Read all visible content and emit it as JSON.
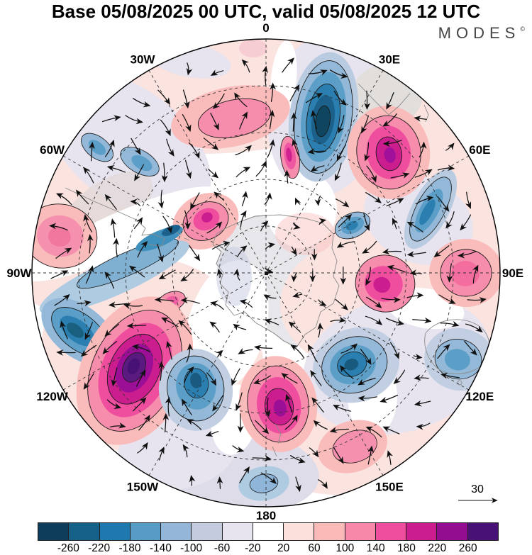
{
  "header": {
    "title": "Base 05/08/2025 00 UTC, valid 05/08/2025 12 UTC",
    "brand": "MODES",
    "brand_mark": "©"
  },
  "map": {
    "longitude_labels": [
      {
        "label": "0",
        "angle_deg": 0
      },
      {
        "label": "30E",
        "angle_deg": 30
      },
      {
        "label": "60E",
        "angle_deg": 60
      },
      {
        "label": "90E",
        "angle_deg": 90
      },
      {
        "label": "120E",
        "angle_deg": 120
      },
      {
        "label": "150E",
        "angle_deg": 150
      },
      {
        "label": "180",
        "angle_deg": 180
      },
      {
        "label": "150W",
        "angle_deg": 210
      },
      {
        "label": "120W",
        "angle_deg": 240
      },
      {
        "label": "90W",
        "angle_deg": 270
      },
      {
        "label": "60W",
        "angle_deg": 300
      },
      {
        "label": "30W",
        "angle_deg": 330
      }
    ]
  },
  "reference_vector": {
    "label": "30"
  },
  "colorbar": {
    "labels": [
      "-260",
      "-220",
      "-180",
      "-140",
      "-100",
      "-60",
      "-20",
      "20",
      "60",
      "100",
      "140",
      "180",
      "220",
      "260"
    ],
    "colors": [
      "#0d3d5a",
      "#15618a",
      "#2079ae",
      "#569cc6",
      "#93b6d9",
      "#c5cbdf",
      "#e7e3ef",
      "#ffffff",
      "#fbe0dc",
      "#f9bab8",
      "#f788a9",
      "#ef4e9f",
      "#cb1d8d",
      "#920d90",
      "#471175"
    ]
  },
  "chart_data": {
    "type": "filled-contour-with-vectors",
    "projection": "south-polar-stereographic",
    "title": "Base 05/08/2025 00 UTC, valid 05/08/2025 12 UTC",
    "base_time": "05/08/2025 00 UTC",
    "valid_time": "05/08/2025 12 UTC",
    "brand": "MODES©",
    "contour_levels": [
      -260,
      -220,
      -180,
      -140,
      -100,
      -60,
      -20,
      20,
      60,
      100,
      140,
      180,
      220,
      260
    ],
    "colorbar_colors": [
      "#0d3d5a",
      "#15618a",
      "#2079ae",
      "#569cc6",
      "#93b6d9",
      "#c5cbdf",
      "#e7e3ef",
      "#ffffff",
      "#fbe0dc",
      "#f9bab8",
      "#f788a9",
      "#ef4e9f",
      "#cb1d8d",
      "#920d90",
      "#471175"
    ],
    "reference_vector_magnitude": 30,
    "longitude_labels": [
      "0",
      "30E",
      "60E",
      "90E",
      "120E",
      "150E",
      "180",
      "150W",
      "120W",
      "90W",
      "60W",
      "30W"
    ],
    "latitude_circles_shown": 4,
    "notable_centers": [
      {
        "sign": "negative",
        "approx_value": -280,
        "approx_location": "near 25E, outer mid-latitudes (deep teal oval)"
      },
      {
        "sign": "positive",
        "approx_value": 230,
        "approx_location": "near 50E (magenta cell)"
      },
      {
        "sign": "positive",
        "approx_value": 280,
        "approx_location": "near 125W (dark purple core, strongest max)"
      },
      {
        "sign": "negative",
        "approx_value": -180,
        "approx_location": "near 160W mid-latitudes (blue cell)"
      },
      {
        "sign": "negative",
        "approx_value": -200,
        "approx_location": "near 140E (blue cell with dark core)"
      },
      {
        "sign": "positive",
        "approx_value": 240,
        "approx_location": "near 175E close to pole (magenta cell)"
      },
      {
        "sign": "positive",
        "approx_value": 180,
        "approx_location": "near 90W outer (pink cell)"
      },
      {
        "sign": "negative",
        "approx_value": -160,
        "approx_location": "near 105W outer (blue oval)"
      },
      {
        "sign": "positive",
        "approx_value": 180,
        "approx_location": "near 75E inner (magenta cell)"
      }
    ]
  }
}
